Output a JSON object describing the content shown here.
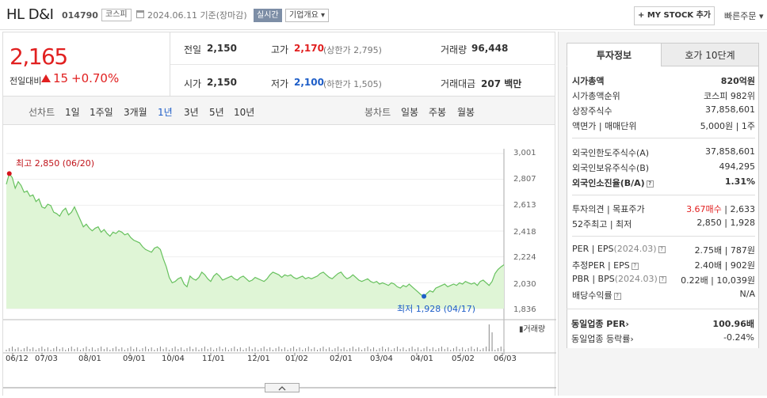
{
  "header": {
    "stock_name": "HL D&I",
    "stock_code": "014790",
    "market": "코스피",
    "date_basis": "2024.06.11 기준(장마감)",
    "realtime": "실시간",
    "company_overview": "기업개요",
    "mystock_button": "+ MY STOCK 추가",
    "quick_order": "빠른주문"
  },
  "price": {
    "current": "2,165",
    "change_label": "전일대비",
    "change_value": "15",
    "change_pct": "+0.70%",
    "prev_close_label": "전일",
    "prev_close": "2,150",
    "high_label": "고가",
    "high": "2,170",
    "upper_limit": "(상한가 2,795)",
    "volume_label": "거래량",
    "volume": "96,448",
    "open_label": "시가",
    "open": "2,150",
    "low_label": "저가",
    "low": "2,100",
    "lower_limit": "(하한가 1,505)",
    "amount_label": "거래대금",
    "amount": "207 백만"
  },
  "period_tabs": {
    "line_chart": "선차트",
    "line_items": [
      "1일",
      "1주일",
      "3개월",
      "1년",
      "3년",
      "5년",
      "10년"
    ],
    "active": "1년",
    "candle_chart": "봉차트",
    "candle_items": [
      "일봉",
      "주봉",
      "월봉"
    ]
  },
  "chart_data": {
    "type": "area",
    "x_labels": [
      "06/12",
      "07/03",
      "08/01",
      "09/01",
      "10/04",
      "11/01",
      "12/01",
      "01/02",
      "02/01",
      "03/04",
      "04/01",
      "05/02",
      "06/03"
    ],
    "y_ticks": [
      "3,001",
      "2,807",
      "2,613",
      "2,418",
      "2,224",
      "2,030",
      "1,836"
    ],
    "ylim": [
      1836,
      3001
    ],
    "high_annotation": "최고 2,850 (06/20)",
    "low_annotation": "최저 1,928 (04/17)",
    "volume_label": "거래량",
    "fill_color": "#dff5d6",
    "line_color": "#67c15e",
    "values": [
      2770,
      2850,
      2820,
      2740,
      2790,
      2760,
      2710,
      2720,
      2680,
      2690,
      2640,
      2660,
      2600,
      2590,
      2620,
      2610,
      2560,
      2550,
      2530,
      2570,
      2590,
      2540,
      2560,
      2600,
      2550,
      2500,
      2450,
      2470,
      2440,
      2420,
      2440,
      2450,
      2410,
      2430,
      2400,
      2380,
      2410,
      2400,
      2420,
      2410,
      2390,
      2400,
      2370,
      2350,
      2340,
      2330,
      2300,
      2280,
      2270,
      2260,
      2290,
      2300,
      2280,
      2210,
      2150,
      2070,
      2030,
      2040,
      2060,
      2070,
      2020,
      2000,
      2080,
      2060,
      2050,
      2070,
      2110,
      2090,
      2060,
      2040,
      2080,
      2100,
      2080,
      2050,
      2060,
      2070,
      2080,
      2060,
      2050,
      2070,
      2080,
      2060,
      2040,
      2050,
      2070,
      2060,
      2050,
      2040,
      2060,
      2090,
      2110,
      2100,
      2090,
      2070,
      2090,
      2080,
      2090,
      2070,
      2060,
      2070,
      2080,
      2060,
      2070,
      2060,
      2070,
      2080,
      2100,
      2110,
      2090,
      2070,
      2060,
      2080,
      2100,
      2110,
      2080,
      2060,
      2070,
      2090,
      2070,
      2050,
      2040,
      2050,
      2060,
      2040,
      2030,
      2040,
      2020,
      2030,
      2020,
      2010,
      2030,
      2020,
      2000,
      1990,
      2010,
      2000,
      2020,
      2000,
      1980,
      1960,
      1940,
      1928,
      1950,
      1970,
      1960,
      1990,
      2000,
      2010,
      2020,
      2000,
      2010,
      2020,
      2010,
      2030,
      2020,
      2040,
      2030,
      2020,
      2030,
      2010,
      2040,
      2050,
      2030,
      2010,
      2040,
      2100,
      2130,
      2150,
      2165
    ]
  },
  "right_panel": {
    "tab_info": "투자정보",
    "tab_orderbook": "호가 10단계",
    "rows1": [
      {
        "k": "시가총액",
        "v": "820억원"
      },
      {
        "k": "시가총액순위",
        "v": "코스피 982위"
      },
      {
        "k": "상장주식수",
        "v": "37,858,601"
      },
      {
        "k": "액면가 | 매매단위",
        "v": "5,000원 | 1주"
      }
    ],
    "rows2": [
      {
        "k": "외국인한도주식수(A)",
        "v": "37,858,601"
      },
      {
        "k": "외국인보유주식수(B)",
        "v": "494,295"
      },
      {
        "k": "외국인소진율(B/A)",
        "v": "1.31%"
      }
    ],
    "opinion_label": "투자의견 | 목표주가",
    "opinion_value": "3.67매수",
    "target_price": " | 2,633",
    "w52_label": "52주최고 | 최저",
    "w52_value": "2,850 | 1,928",
    "per_label": "PER | EPS",
    "per_date": "(2024.03)",
    "per_value": "2.75배 | 787원",
    "est_per_label": "추정PER | EPS",
    "est_per_value": "2.40배 | 902원",
    "pbr_label": "PBR | BPS",
    "pbr_date": "(2024.03)",
    "pbr_value": "0.22배 | 10,039원",
    "dividend_label": "배당수익률",
    "dividend_value": "N/A",
    "industry_per_label": "동일업종 PER",
    "industry_per_value": "100.96배",
    "industry_rate_label": "동일업종 등락률",
    "industry_rate_value": "-0.24%"
  }
}
